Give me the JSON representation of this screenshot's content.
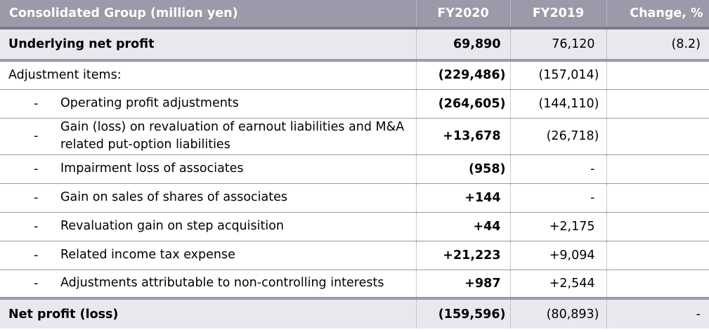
{
  "header": {
    "label": "Consolidated Group (million yen)",
    "fy2020": "FY2020",
    "fy2019": "FY2019",
    "change": "Change, %"
  },
  "underlying": {
    "label": "Underlying net profit",
    "fy2020": "69,890",
    "fy2019": "76,120",
    "change": "(8.2)"
  },
  "adjustments": {
    "label": "Adjustment items:",
    "fy2020": "(229,486)",
    "fy2019": "(157,014)",
    "change": ""
  },
  "items": [
    {
      "dash": "-",
      "label": "Operating profit adjustments",
      "fy2020": "(264,605)",
      "fy2019": "(144,110)",
      "change": ""
    },
    {
      "dash": "-",
      "label": "Gain (loss) on revaluation of earnout liabilities and M&A related put-option liabilities",
      "fy2020": "+13,678",
      "fy2019": "(26,718)",
      "change": ""
    },
    {
      "dash": "-",
      "label": "Impairment loss of associates",
      "fy2020": "(958)",
      "fy2019": "-",
      "change": ""
    },
    {
      "dash": "-",
      "label": "Gain on sales of shares of associates",
      "fy2020": "+144",
      "fy2019": "-",
      "change": ""
    },
    {
      "dash": "-",
      "label": "Revaluation gain on step acquisition",
      "fy2020": "+44",
      "fy2019": "+2,175",
      "change": ""
    },
    {
      "dash": "-",
      "label": "Related income tax expense",
      "fy2020": "+21,223",
      "fy2019": "+9,094",
      "change": ""
    },
    {
      "dash": "-",
      "label": "Adjustments attributable to non-controlling interests",
      "fy2020": "+987",
      "fy2019": "+2,544",
      "change": ""
    }
  ],
  "net": {
    "label": "Net profit (loss)",
    "fy2020": "(159,596)",
    "fy2019": "(80,893)",
    "change": "-"
  }
}
